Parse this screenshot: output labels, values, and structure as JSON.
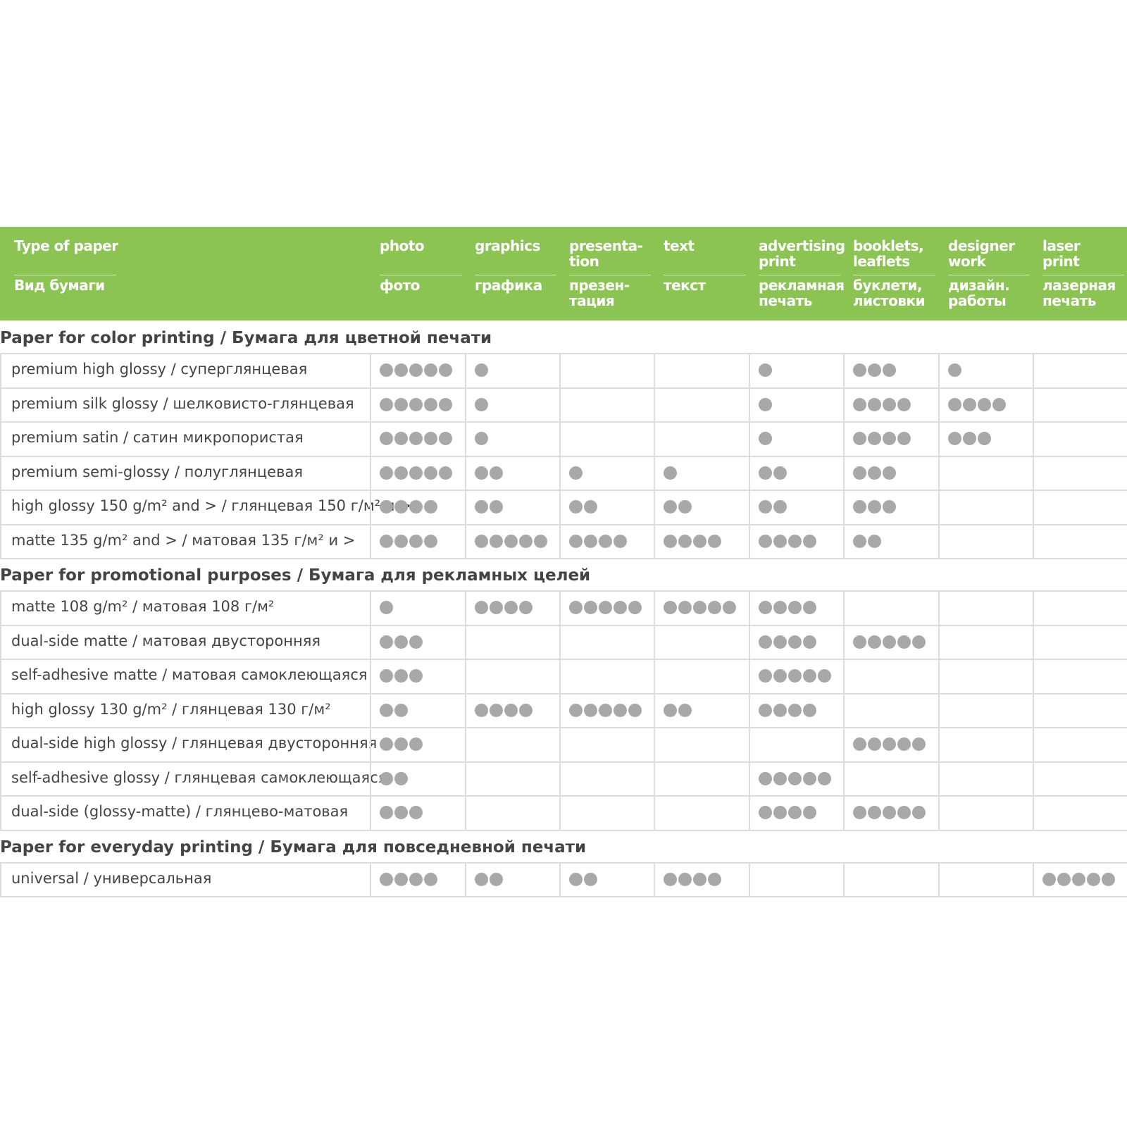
{
  "header": {
    "columns": [
      {
        "en": "Type of paper",
        "ru": "Вид бумаги"
      },
      {
        "en": "photo",
        "ru": "фото"
      },
      {
        "en": "graphics",
        "ru": "графика"
      },
      {
        "en": "presenta-\ntion",
        "ru": "презен-\nтация"
      },
      {
        "en": "text",
        "ru": "текст"
      },
      {
        "en": "advertising\nprint",
        "ru": "рекламная\nпечать"
      },
      {
        "en": "booklets,\nleaflets",
        "ru": "буклети,\nлистовки"
      },
      {
        "en": "designer\nwork",
        "ru": "дизайн.\nработы"
      },
      {
        "en": "laser\nprint",
        "ru": "лазерная\nпечать"
      }
    ]
  },
  "sections": [
    {
      "title": "Paper for color printing / Бумага для цветной печати",
      "rows": [
        {
          "name": "premium high glossy / суперглянцевая",
          "ratings": [
            5,
            1,
            null,
            null,
            1,
            3,
            1,
            null
          ]
        },
        {
          "name": "premium silk glossy / шелковисто-глянцевая",
          "ratings": [
            5,
            1,
            null,
            null,
            1,
            4,
            4,
            null
          ]
        },
        {
          "name": "premium satin / сатин микропористая",
          "ratings": [
            5,
            1,
            null,
            null,
            1,
            4,
            3,
            null
          ]
        },
        {
          "name": "premium semi-glossy / полуглянцевая",
          "ratings": [
            5,
            2,
            1,
            1,
            2,
            3,
            null,
            null
          ]
        },
        {
          "name": "high glossy 150 g/m² and > / глянцевая 150 г/м² и >",
          "ratings": [
            4,
            2,
            2,
            2,
            2,
            3,
            null,
            null
          ]
        },
        {
          "name": "matte 135 g/m² and > / матовая 135 г/м² и >",
          "ratings": [
            4,
            5,
            4,
            4,
            4,
            2,
            null,
            null
          ]
        }
      ]
    },
    {
      "title": "Paper for promotional purposes / Бумага для рекламных целей",
      "rows": [
        {
          "name": "matte 108 g/m² / матовая 108 г/м²",
          "ratings": [
            1,
            4,
            5,
            5,
            4,
            null,
            null,
            null
          ]
        },
        {
          "name": "dual-side matte / матовая двусторонняя",
          "ratings": [
            3,
            null,
            null,
            null,
            4,
            5,
            null,
            null
          ]
        },
        {
          "name": "self-adhesive matte / матовая самоклеющаяся",
          "ratings": [
            3,
            null,
            null,
            null,
            5,
            null,
            null,
            null
          ]
        },
        {
          "name": "high glossy 130 g/m² / глянцевая 130 г/м²",
          "ratings": [
            2,
            4,
            5,
            2,
            4,
            null,
            null,
            null
          ]
        },
        {
          "name": "dual-side high glossy / глянцевая двусторонняя",
          "ratings": [
            3,
            null,
            null,
            null,
            null,
            5,
            null,
            null
          ]
        },
        {
          "name": "self-adhesive glossy / глянцевая самоклеющаяся",
          "ratings": [
            2,
            null,
            null,
            null,
            5,
            null,
            null,
            null
          ]
        },
        {
          "name": "dual-side (glossy-matte) / глянцево-матовая",
          "ratings": [
            3,
            null,
            null,
            null,
            4,
            5,
            null,
            null
          ]
        }
      ]
    },
    {
      "title": "Paper for everyday printing / Бумага для повседневной печати",
      "rows": [
        {
          "name": "universal / универсальная",
          "ratings": [
            4,
            2,
            2,
            4,
            null,
            null,
            null,
            5
          ]
        }
      ]
    }
  ]
}
